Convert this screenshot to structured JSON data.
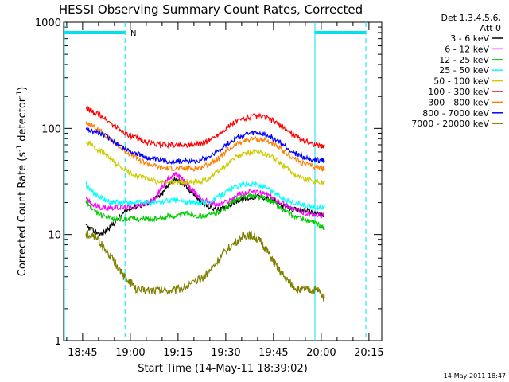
{
  "chart_data": {
    "type": "line",
    "title": "HESSI Observing Summary Count Rates, Corrected",
    "xlabel": "Start Time (14-May-11 18:39:02)",
    "ylabel_main": "Corrected Count Rate (s",
    "ylabel_sup1": "-1",
    "ylabel_mid": " detector",
    "ylabel_sup2": "-1",
    "ylabel_end": ")",
    "x_range": [
      "18:39:02",
      "20:19:00"
    ],
    "xlim_min": [
      0,
      100
    ],
    "y_scale": "log",
    "ylim": [
      1,
      1000
    ],
    "x_ticks": [
      {
        "label": "18:45",
        "min": 5.97
      },
      {
        "label": "19:00",
        "min": 20.97
      },
      {
        "label": "19:15",
        "min": 35.97
      },
      {
        "label": "19:30",
        "min": 50.97
      },
      {
        "label": "19:45",
        "min": 65.97
      },
      {
        "label": "20:00",
        "min": 80.97
      },
      {
        "label": "20:15",
        "min": 95.97
      }
    ],
    "y_ticks": [
      {
        "label": "1",
        "value": 1
      },
      {
        "label": "10",
        "value": 10
      },
      {
        "label": "100",
        "value": 100
      },
      {
        "label": "1000",
        "value": 1000
      }
    ],
    "legend": {
      "position": "right",
      "header_line1": "Det 1,3,4,5,6,",
      "header_line2": "Att 0"
    },
    "series": [
      {
        "name": "3 - 6 keV",
        "color": "#000000",
        "points": [
          [
            7,
            12
          ],
          [
            9,
            11
          ],
          [
            12,
            10
          ],
          [
            15,
            12
          ],
          [
            18,
            15
          ],
          [
            21,
            18
          ],
          [
            25,
            19
          ],
          [
            28,
            21
          ],
          [
            31,
            24
          ],
          [
            33,
            30
          ],
          [
            35,
            33
          ],
          [
            37,
            31
          ],
          [
            39,
            27
          ],
          [
            41,
            24
          ],
          [
            43,
            20
          ],
          [
            46,
            18
          ],
          [
            49,
            17
          ],
          [
            52,
            19
          ],
          [
            55,
            21
          ],
          [
            58,
            22
          ],
          [
            61,
            23
          ],
          [
            64,
            22
          ],
          [
            67,
            20
          ],
          [
            70,
            18
          ],
          [
            73,
            17
          ],
          [
            76,
            17
          ],
          [
            79,
            16
          ],
          [
            82,
            15
          ]
        ]
      },
      {
        "name": "6 - 12 keV",
        "color": "#ff00ff",
        "points": [
          [
            7,
            22
          ],
          [
            9,
            19
          ],
          [
            12,
            18
          ],
          [
            15,
            18
          ],
          [
            18,
            18
          ],
          [
            21,
            18
          ],
          [
            24,
            19
          ],
          [
            27,
            20
          ],
          [
            29,
            22
          ],
          [
            31,
            28
          ],
          [
            33,
            34
          ],
          [
            35,
            37
          ],
          [
            37,
            34
          ],
          [
            39,
            29
          ],
          [
            41,
            25
          ],
          [
            43,
            22
          ],
          [
            46,
            20
          ],
          [
            49,
            19
          ],
          [
            52,
            21
          ],
          [
            55,
            24
          ],
          [
            58,
            25
          ],
          [
            61,
            25
          ],
          [
            64,
            24
          ],
          [
            67,
            21
          ],
          [
            70,
            19
          ],
          [
            73,
            17
          ],
          [
            76,
            16
          ],
          [
            79,
            15
          ],
          [
            82,
            15
          ]
        ]
      },
      {
        "name": "12 - 25 keV",
        "color": "#00cc00",
        "points": [
          [
            7,
            21
          ],
          [
            9,
            17
          ],
          [
            12,
            15
          ],
          [
            15,
            14
          ],
          [
            18,
            14
          ],
          [
            21,
            14
          ],
          [
            24,
            14
          ],
          [
            27,
            14
          ],
          [
            30,
            14
          ],
          [
            33,
            15
          ],
          [
            36,
            15
          ],
          [
            39,
            16
          ],
          [
            42,
            15
          ],
          [
            45,
            15
          ],
          [
            48,
            16
          ],
          [
            51,
            18
          ],
          [
            54,
            21
          ],
          [
            57,
            23
          ],
          [
            60,
            23
          ],
          [
            63,
            22
          ],
          [
            66,
            20
          ],
          [
            69,
            17
          ],
          [
            72,
            15
          ],
          [
            75,
            14
          ],
          [
            78,
            13
          ],
          [
            81,
            12
          ],
          [
            82,
            11
          ]
        ]
      },
      {
        "name": "25 - 50 keV",
        "color": "#00ffff",
        "points": [
          [
            7,
            30
          ],
          [
            9,
            25
          ],
          [
            12,
            22
          ],
          [
            15,
            20
          ],
          [
            18,
            20
          ],
          [
            21,
            20
          ],
          [
            24,
            20
          ],
          [
            27,
            20
          ],
          [
            30,
            20
          ],
          [
            33,
            21
          ],
          [
            36,
            21
          ],
          [
            39,
            20
          ],
          [
            42,
            20
          ],
          [
            45,
            20
          ],
          [
            48,
            22
          ],
          [
            51,
            25
          ],
          [
            54,
            28
          ],
          [
            57,
            30
          ],
          [
            60,
            30
          ],
          [
            63,
            28
          ],
          [
            66,
            25
          ],
          [
            69,
            22
          ],
          [
            72,
            20
          ],
          [
            75,
            19
          ],
          [
            78,
            18
          ],
          [
            81,
            18
          ],
          [
            82,
            18
          ]
        ]
      },
      {
        "name": "50 - 100 keV",
        "color": "#cccc00",
        "points": [
          [
            7,
            76
          ],
          [
            9,
            68
          ],
          [
            12,
            60
          ],
          [
            15,
            50
          ],
          [
            18,
            43
          ],
          [
            21,
            38
          ],
          [
            24,
            35
          ],
          [
            27,
            33
          ],
          [
            30,
            31
          ],
          [
            33,
            31
          ],
          [
            36,
            31
          ],
          [
            39,
            31
          ],
          [
            42,
            31
          ],
          [
            45,
            33
          ],
          [
            48,
            38
          ],
          [
            51,
            45
          ],
          [
            54,
            53
          ],
          [
            57,
            58
          ],
          [
            60,
            60
          ],
          [
            63,
            58
          ],
          [
            66,
            53
          ],
          [
            69,
            45
          ],
          [
            72,
            38
          ],
          [
            75,
            34
          ],
          [
            78,
            32
          ],
          [
            81,
            31
          ],
          [
            82,
            31
          ]
        ]
      },
      {
        "name": "100 - 300 keV",
        "color": "#ff0000",
        "points": [
          [
            7,
            155
          ],
          [
            9,
            145
          ],
          [
            12,
            130
          ],
          [
            15,
            110
          ],
          [
            18,
            95
          ],
          [
            21,
            85
          ],
          [
            24,
            78
          ],
          [
            27,
            73
          ],
          [
            30,
            70
          ],
          [
            33,
            70
          ],
          [
            36,
            70
          ],
          [
            39,
            70
          ],
          [
            42,
            71
          ],
          [
            45,
            75
          ],
          [
            48,
            85
          ],
          [
            51,
            100
          ],
          [
            54,
            115
          ],
          [
            57,
            125
          ],
          [
            60,
            130
          ],
          [
            63,
            128
          ],
          [
            66,
            118
          ],
          [
            69,
            102
          ],
          [
            72,
            88
          ],
          [
            75,
            78
          ],
          [
            78,
            72
          ],
          [
            81,
            68
          ],
          [
            82,
            68
          ]
        ]
      },
      {
        "name": "300 - 800 keV",
        "color": "#ff8000",
        "points": [
          [
            7,
            115
          ],
          [
            9,
            105
          ],
          [
            12,
            92
          ],
          [
            15,
            78
          ],
          [
            18,
            65
          ],
          [
            21,
            57
          ],
          [
            24,
            50
          ],
          [
            27,
            46
          ],
          [
            30,
            43
          ],
          [
            33,
            42
          ],
          [
            36,
            42
          ],
          [
            39,
            42
          ],
          [
            42,
            42
          ],
          [
            45,
            45
          ],
          [
            48,
            51
          ],
          [
            51,
            60
          ],
          [
            54,
            70
          ],
          [
            57,
            77
          ],
          [
            60,
            80
          ],
          [
            63,
            78
          ],
          [
            66,
            71
          ],
          [
            69,
            61
          ],
          [
            72,
            53
          ],
          [
            75,
            47
          ],
          [
            78,
            44
          ],
          [
            81,
            42
          ],
          [
            82,
            42
          ]
        ]
      },
      {
        "name": "800 - 7000 keV",
        "color": "#0000ff",
        "points": [
          [
            7,
            100
          ],
          [
            9,
            95
          ],
          [
            12,
            88
          ],
          [
            15,
            78
          ],
          [
            18,
            68
          ],
          [
            21,
            61
          ],
          [
            24,
            56
          ],
          [
            27,
            52
          ],
          [
            30,
            50
          ],
          [
            33,
            49
          ],
          [
            36,
            49
          ],
          [
            39,
            49
          ],
          [
            42,
            50
          ],
          [
            45,
            53
          ],
          [
            48,
            60
          ],
          [
            51,
            70
          ],
          [
            54,
            80
          ],
          [
            57,
            87
          ],
          [
            60,
            90
          ],
          [
            63,
            88
          ],
          [
            66,
            80
          ],
          [
            69,
            70
          ],
          [
            72,
            60
          ],
          [
            75,
            54
          ],
          [
            78,
            51
          ],
          [
            81,
            50
          ],
          [
            82,
            50
          ]
        ]
      },
      {
        "name": "7000 - 20000 keV",
        "color": "#808000",
        "points": [
          [
            7,
            10
          ],
          [
            9,
            10
          ],
          [
            11,
            9
          ],
          [
            13,
            7
          ],
          [
            15,
            6
          ],
          [
            17,
            5
          ],
          [
            19,
            4
          ],
          [
            21,
            3.5
          ],
          [
            23,
            3
          ],
          [
            26,
            3
          ],
          [
            29,
            3
          ],
          [
            32,
            3
          ],
          [
            35,
            3
          ],
          [
            38,
            3.2
          ],
          [
            41,
            3.5
          ],
          [
            44,
            4
          ],
          [
            47,
            5
          ],
          [
            50,
            6.5
          ],
          [
            53,
            8
          ],
          [
            56,
            9.5
          ],
          [
            58,
            10
          ],
          [
            60,
            9.5
          ],
          [
            62,
            8.5
          ],
          [
            64,
            7
          ],
          [
            66,
            5.5
          ],
          [
            68,
            4.5
          ],
          [
            70,
            3.8
          ],
          [
            72,
            3.3
          ],
          [
            74,
            3
          ],
          [
            76,
            3
          ],
          [
            78,
            3
          ],
          [
            80,
            3
          ],
          [
            82,
            2.5
          ]
        ]
      }
    ],
    "annotations": {
      "vertical_solid": [
        {
          "min": 0
        },
        {
          "min": 79
        }
      ],
      "vertical_dashed": [
        {
          "min": 19.3
        },
        {
          "min": 95
        }
      ],
      "night_bars": [
        {
          "from": 0,
          "to": 19.3
        },
        {
          "from": 79,
          "to": 95
        }
      ],
      "night_label": {
        "text": "N",
        "min": 21
      },
      "colors": {
        "annotation": "#00e0f0"
      }
    }
  },
  "footer": {
    "timestamp": "14-May-2011 18:47"
  }
}
